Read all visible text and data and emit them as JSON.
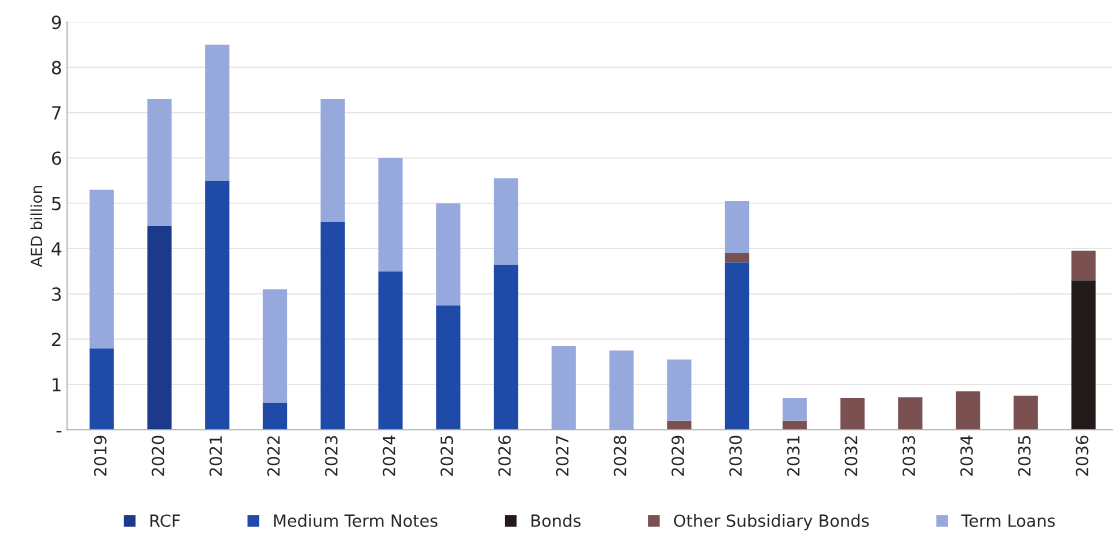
{
  "chart_data": {
    "type": "bar",
    "stacked": true,
    "ylabel": "AED billion",
    "categories": [
      "2019",
      "2020",
      "2021",
      "2022",
      "2023",
      "2024",
      "2025",
      "2026",
      "2027",
      "2028",
      "2029",
      "2030",
      "2031",
      "2032",
      "2033",
      "2034",
      "2035",
      "2036"
    ],
    "series": [
      {
        "name": "RCF",
        "color": "#1c3a8c",
        "values": [
          0,
          4.5,
          0,
          0,
          0,
          0,
          0,
          0,
          0,
          0,
          0,
          0,
          0,
          0,
          0,
          0,
          0,
          0
        ]
      },
      {
        "name": "Medium Term Notes",
        "color": "#1f4aa8",
        "values": [
          1.8,
          0,
          5.5,
          0.6,
          4.6,
          3.5,
          2.75,
          3.65,
          0,
          0,
          0,
          3.7,
          0,
          0,
          0,
          0,
          0,
          0
        ]
      },
      {
        "name": "Bonds",
        "color": "#231a1a",
        "values": [
          0,
          0,
          0,
          0,
          0,
          0,
          0,
          0,
          0,
          0,
          0,
          0,
          0,
          0,
          0,
          0,
          0,
          3.3
        ]
      },
      {
        "name": "Other Subsidiary Bonds",
        "color": "#7a5050",
        "values": [
          0,
          0,
          0,
          0,
          0,
          0,
          0,
          0,
          0,
          0,
          0.2,
          0.2,
          0.2,
          0.7,
          0.72,
          0.85,
          0.75,
          0.65
        ]
      },
      {
        "name": "Term Loans",
        "color": "#97a8dc",
        "values": [
          3.5,
          2.8,
          3.0,
          2.5,
          2.7,
          2.5,
          2.25,
          1.9,
          1.85,
          1.75,
          1.35,
          1.15,
          0.5,
          0,
          0,
          0,
          0,
          0
        ]
      }
    ],
    "ylim": [
      0,
      9
    ],
    "yticks": [
      {
        "value": 0,
        "label": "-"
      },
      1,
      2,
      3,
      4,
      5,
      6,
      7,
      8,
      9
    ],
    "grid": "y",
    "legend": "bottom"
  }
}
